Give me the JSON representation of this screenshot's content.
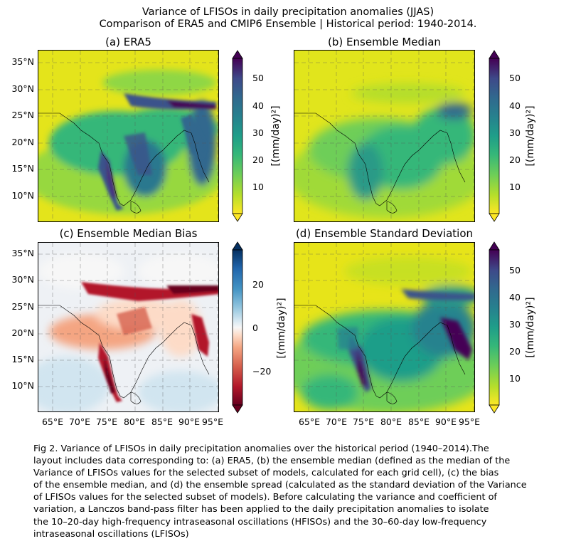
{
  "figure": {
    "title_line1": "Variance of LFISOs in daily precipitation anomalies (JJAS)",
    "title_line2": "Comparison of ERA5 and CMIP6 Ensemble | Historical period: 1940-2014."
  },
  "panels": [
    {
      "id": "a",
      "title": "(a) ERA5",
      "colormap": "viridis_r",
      "colorbar_ticks": [
        "10",
        "20",
        "30",
        "40",
        "50"
      ],
      "colorbar_label": "[(mm/day)²]",
      "colorbar_range": [
        0,
        58
      ]
    },
    {
      "id": "b",
      "title": "(b) Ensemble Median",
      "colormap": "viridis_r",
      "colorbar_ticks": [
        "10",
        "20",
        "30",
        "40",
        "50"
      ],
      "colorbar_label": "[(mm/day)²]",
      "colorbar_range": [
        0,
        58
      ]
    },
    {
      "id": "c",
      "title": "(c) Ensemble Median Bias",
      "colormap": "RdBu",
      "colorbar_ticks": [
        "20",
        "0",
        "−20"
      ],
      "colorbar_label": "[(mm/day)²]",
      "colorbar_range": [
        -37,
        37
      ]
    },
    {
      "id": "d",
      "title": "(d) Ensemble Standard Deviation",
      "colormap": "viridis_r",
      "colorbar_ticks": [
        "10",
        "20",
        "30",
        "40",
        "50"
      ],
      "colorbar_label": "[(mm/day)²]",
      "colorbar_range": [
        0,
        58
      ]
    }
  ],
  "axes": {
    "lat_ticks": [
      "35°N",
      "30°N",
      "25°N",
      "20°N",
      "15°N",
      "10°N"
    ],
    "lon_ticks": [
      "65°E",
      "70°E",
      "75°E",
      "80°E",
      "85°E",
      "90°E",
      "95°E"
    ]
  },
  "caption": "Fig 2. Variance of LFISOs in daily precipitation anomalies over the historical period (1940–2014).The\nlayout includes data corresponding to: (a) ERA5, (b) the ensemble median (defined as the median of the\nVariance of LFISOs values for the selected subset of models, calculated for each grid cell), (c) the bias\nof the ensemble median, and (d) the ensemble spread (calculated as the standard deviation of the Variance\nof LFISOs values for the selected subset of models). Before calculating the variance and coefficient of\nvariation, a Lanczos band-pass filter has been applied to the daily precipitation anomalies to isolate\nthe 10–20-day high-frequency intraseasonal oscillations (HFISOs) and the 30–60-day low-frequency\nintraseasonal oscillations (LFISOs)",
  "colors": {
    "viridis_low": "#fde725",
    "viridis_mid": "#21918c",
    "viridis_high": "#440154",
    "rdbu_neg": "#67001f",
    "rdbu_zero": "#f7f7f7",
    "rdbu_pos": "#053061"
  }
}
